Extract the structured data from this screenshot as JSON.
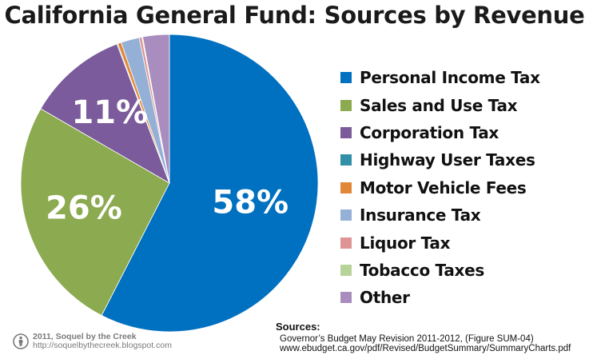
{
  "chart_data": {
    "type": "pie",
    "title": "California General Fund: Sources by Revenue",
    "slices": [
      {
        "name": "Personal Income Tax",
        "value": 58,
        "label": "58%",
        "color": "#0070C0"
      },
      {
        "name": "Sales and Use Tax",
        "value": 26,
        "label": "26%",
        "color": "#8CAA50"
      },
      {
        "name": "Corporation Tax",
        "value": 11,
        "label": "11%",
        "color": "#7B5B9B"
      },
      {
        "name": "Highway User Taxes",
        "value": 0.1,
        "label": "",
        "color": "#3190A8"
      },
      {
        "name": "Motor Vehicle Fees",
        "value": 0.4,
        "label": "",
        "color": "#E08838"
      },
      {
        "name": "Insurance Tax",
        "value": 2.0,
        "label": "",
        "color": "#95B0D6"
      },
      {
        "name": "Liquor Tax",
        "value": 0.3,
        "label": "",
        "color": "#DE9492"
      },
      {
        "name": "Tobacco Taxes",
        "value": 0.1,
        "label": "",
        "color": "#B8D39A"
      },
      {
        "name": "Other",
        "value": 2.9,
        "label": "",
        "color": "#A98DBF"
      }
    ],
    "legend_position": "right",
    "start_angle": "top (12 o'clock), clockwise"
  },
  "footer": {
    "credit": "2011, Soquel by the Creek",
    "credit_url": "http://soquelbythecreek.blogspot.com",
    "license_icon": "creative-commons-attribution-icon"
  },
  "sources": {
    "heading": "Sources:",
    "line1": "Governor’s Budget May Revision 2011-2012, (Figure SUM-04)",
    "line2": "www.ebudget.ca.gov/pdf/Revised/BudgetSummary/SummaryCharts.pdf"
  }
}
